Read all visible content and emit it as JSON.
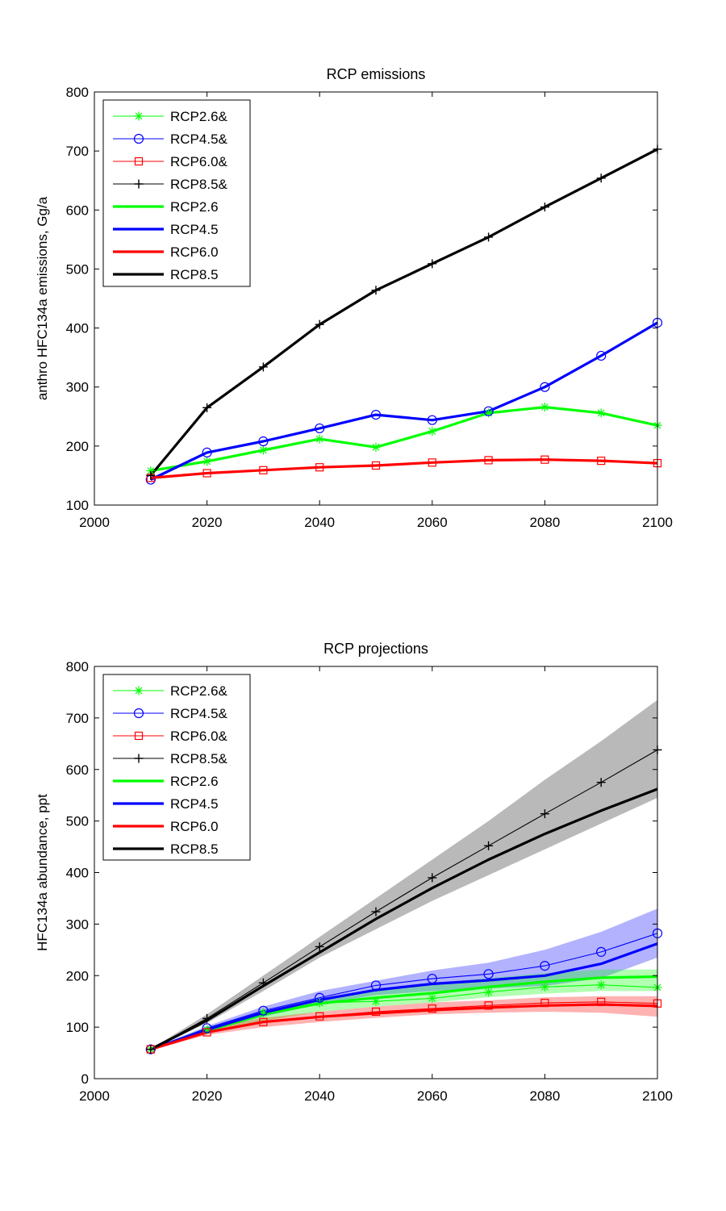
{
  "chart_data": [
    {
      "type": "line",
      "title": "RCP emissions",
      "xlabel": "",
      "ylabel": "anthro HFC134a emissions, Gg/a",
      "xlim": [
        2000,
        2100
      ],
      "ylim": [
        100,
        800
      ],
      "xticks": [
        2000,
        2020,
        2040,
        2060,
        2080,
        2100
      ],
      "yticks": [
        100,
        200,
        300,
        400,
        500,
        600,
        700,
        800
      ],
      "grid": false,
      "legend_position": "top-left",
      "x": [
        2010,
        2020,
        2030,
        2040,
        2050,
        2060,
        2070,
        2080,
        2090,
        2100
      ],
      "series": [
        {
          "name": "RCP2.6&",
          "color": "#00ff00",
          "style": "thin",
          "marker": "star",
          "values": [
            158,
            174,
            193,
            212,
            198,
            225,
            256,
            266,
            256,
            235
          ]
        },
        {
          "name": "RCP4.5&",
          "color": "#0000ff",
          "style": "thin",
          "marker": "circle",
          "values": [
            143,
            189,
            208,
            230,
            253,
            244,
            259,
            300,
            353,
            409
          ]
        },
        {
          "name": "RCP6.0&",
          "color": "#ff0000",
          "style": "thin",
          "marker": "square",
          "values": [
            146,
            154,
            159,
            164,
            167,
            172,
            176,
            177,
            175,
            171
          ]
        },
        {
          "name": "RCP8.5&",
          "color": "#000000",
          "style": "thin",
          "marker": "plus",
          "values": [
            150,
            265,
            334,
            406,
            464,
            509,
            554,
            605,
            654,
            703
          ]
        },
        {
          "name": "RCP2.6",
          "color": "#00ff00",
          "style": "thick",
          "marker": "none",
          "values": [
            158,
            174,
            193,
            212,
            198,
            225,
            256,
            266,
            256,
            235
          ]
        },
        {
          "name": "RCP4.5",
          "color": "#0000ff",
          "style": "thick",
          "marker": "none",
          "values": [
            143,
            189,
            208,
            230,
            253,
            244,
            259,
            300,
            353,
            409
          ]
        },
        {
          "name": "RCP6.0",
          "color": "#ff0000",
          "style": "thick",
          "marker": "none",
          "values": [
            146,
            154,
            159,
            164,
            167,
            172,
            176,
            177,
            175,
            171
          ]
        },
        {
          "name": "RCP8.5",
          "color": "#000000",
          "style": "thick",
          "marker": "none",
          "values": [
            150,
            265,
            334,
            406,
            464,
            509,
            554,
            605,
            654,
            703
          ]
        }
      ]
    },
    {
      "type": "line",
      "title": "RCP projections",
      "xlabel": "",
      "ylabel": "HFC134a abundance, ppt",
      "xlim": [
        2000,
        2100
      ],
      "ylim": [
        0,
        800
      ],
      "xticks": [
        2000,
        2020,
        2040,
        2060,
        2080,
        2100
      ],
      "yticks": [
        0,
        100,
        200,
        300,
        400,
        500,
        600,
        700,
        800
      ],
      "grid": false,
      "legend_position": "top-left",
      "x": [
        2010,
        2020,
        2030,
        2040,
        2050,
        2060,
        2070,
        2080,
        2090,
        2100
      ],
      "bands": [
        {
          "color": "#808080",
          "opacity": 0.55,
          "lower": [
            55,
            108,
            170,
            235,
            290,
            345,
            395,
            445,
            495,
            545
          ],
          "upper": [
            58,
            125,
            200,
            275,
            350,
            425,
            500,
            580,
            655,
            735
          ]
        },
        {
          "color": "#0000ff",
          "opacity": 0.3,
          "lower": [
            55,
            92,
            120,
            145,
            162,
            170,
            175,
            180,
            195,
            235
          ],
          "upper": [
            58,
            102,
            140,
            170,
            190,
            210,
            225,
            250,
            285,
            330
          ]
        },
        {
          "color": "#00ff00",
          "opacity": 0.3,
          "lower": [
            55,
            90,
            112,
            130,
            140,
            148,
            158,
            165,
            170,
            170
          ],
          "upper": [
            58,
            100,
            130,
            155,
            172,
            185,
            195,
            205,
            212,
            212
          ]
        },
        {
          "color": "#ff0000",
          "opacity": 0.3,
          "lower": [
            55,
            85,
            100,
            110,
            118,
            125,
            128,
            130,
            128,
            120
          ],
          "upper": [
            58,
            97,
            118,
            130,
            140,
            148,
            152,
            158,
            160,
            160
          ]
        }
      ],
      "series": [
        {
          "name": "RCP2.6&",
          "color": "#00ff00",
          "style": "thin",
          "marker": "star",
          "values": [
            57,
            95,
            128,
            147,
            150,
            156,
            168,
            178,
            182,
            177
          ]
        },
        {
          "name": "RCP4.5&",
          "color": "#0000ff",
          "style": "thin",
          "marker": "circle",
          "values": [
            57,
            98,
            132,
            157,
            181,
            194,
            203,
            219,
            246,
            282
          ]
        },
        {
          "name": "RCP6.0&",
          "color": "#ff0000",
          "style": "thin",
          "marker": "square",
          "values": [
            57,
            90,
            110,
            121,
            130,
            136,
            142,
            147,
            149,
            146
          ]
        },
        {
          "name": "RCP8.5&",
          "color": "#000000",
          "style": "thin",
          "marker": "plus",
          "values": [
            57,
            117,
            186,
            256,
            324,
            390,
            452,
            514,
            575,
            638
          ]
        },
        {
          "name": "RCP2.6",
          "color": "#00ff00",
          "style": "thick",
          "marker": "none",
          "values": [
            57,
            93,
            125,
            146,
            157,
            166,
            178,
            188,
            196,
            198
          ]
        },
        {
          "name": "RCP4.5",
          "color": "#0000ff",
          "style": "thick",
          "marker": "none",
          "values": [
            57,
            95,
            128,
            153,
            172,
            184,
            191,
            200,
            223,
            262
          ]
        },
        {
          "name": "RCP6.0",
          "color": "#ff0000",
          "style": "thick",
          "marker": "none",
          "values": [
            57,
            90,
            110,
            120,
            127,
            133,
            138,
            142,
            144,
            141
          ]
        },
        {
          "name": "RCP8.5",
          "color": "#000000",
          "style": "thick",
          "marker": "none",
          "values": [
            57,
            113,
            180,
            245,
            310,
            370,
            425,
            475,
            520,
            562
          ]
        }
      ]
    }
  ]
}
